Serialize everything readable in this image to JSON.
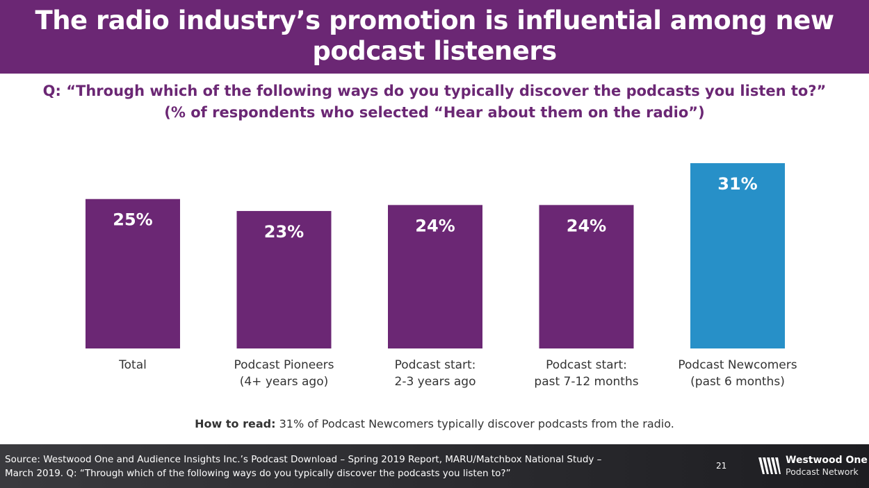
{
  "title": "The radio industry’s promotion is influential among new podcast listeners",
  "question_line1": "Q: “Through which of the following ways do you typically discover the podcasts you listen to?”",
  "question_line2": "(% of respondents who selected “Hear about them on the radio”)",
  "chart_data": {
    "type": "bar",
    "categories": [
      [
        "Total"
      ],
      [
        "Podcast Pioneers",
        "(4+ years ago)"
      ],
      [
        "Podcast start:",
        "2-3 years ago"
      ],
      [
        "Podcast start:",
        "past 7-12 months"
      ],
      [
        "Podcast Newcomers",
        "(past 6 months)"
      ]
    ],
    "values": [
      25,
      23,
      24,
      24,
      31
    ],
    "data_labels": [
      "25%",
      "23%",
      "24%",
      "24%",
      "31%"
    ],
    "colors": [
      "#6b2774",
      "#6b2774",
      "#6b2774",
      "#6b2774",
      "#2790c8"
    ],
    "ylim": [
      0,
      36
    ],
    "grid": false,
    "legend": "none"
  },
  "how_to_read_label": "How to read:",
  "how_to_read_text": " 31% of Podcast Newcomers typically discover podcasts from the radio.",
  "source_line1": "Source: Westwood One and Audience Insights Inc.’s Podcast Download – Spring 2019 Report, MARU/Matchbox National Study –",
  "source_line2": "March 2019. Q: “Through which of the following ways do you typically discover the podcasts you listen to?”",
  "page_number": "21",
  "logo_name": "Westwood One",
  "logo_sub": "Podcast Network",
  "logo_icon": "westwood-one-logo-icon"
}
